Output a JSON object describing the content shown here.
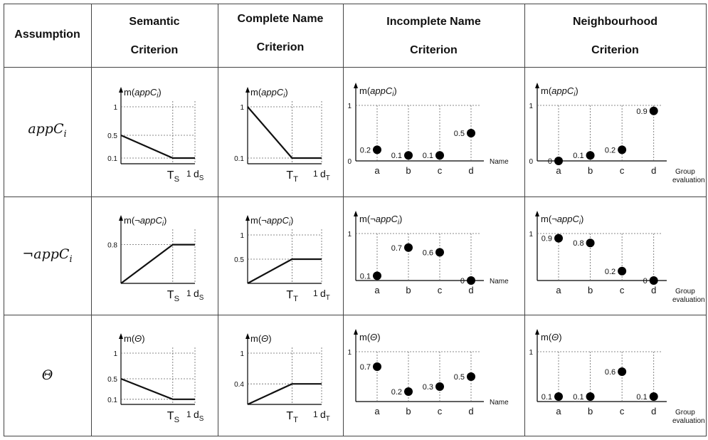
{
  "header": {
    "assumption": "Assumption",
    "semantic": [
      "Semantic",
      "Criterion"
    ],
    "complete": [
      "Complete Name",
      "Criterion"
    ],
    "incomplete": [
      "Incomplete Name",
      "Criterion"
    ],
    "neighbourhood": [
      "Neighbourhood",
      "Criterion"
    ]
  },
  "rows": [
    {
      "label_main": "appC",
      "label_sub": "i",
      "prefix": ""
    },
    {
      "label_main": "appC",
      "label_sub": "i",
      "prefix": "¬"
    },
    {
      "label_main": "Θ",
      "label_sub": "",
      "prefix": ""
    }
  ],
  "chart_data": [
    {
      "id": "sem-app",
      "type": "line",
      "ylabel": "m(appC_i)",
      "xlabel": "d_S",
      "threshold": "T_S",
      "yticks": [
        "1",
        "0.5",
        "0.1"
      ],
      "ytick_values": [
        1,
        0.5,
        0.1
      ],
      "points": [
        [
          0,
          0.5
        ],
        [
          0.7,
          0.1
        ],
        [
          1,
          0.1
        ]
      ]
    },
    {
      "id": "com-app",
      "type": "line",
      "ylabel": "m(appC_i)",
      "xlabel": "d_T",
      "threshold": "T_T",
      "yticks": [
        "1",
        "0.1"
      ],
      "ytick_values": [
        1,
        0.1
      ],
      "points": [
        [
          0,
          1
        ],
        [
          0.6,
          0.1
        ],
        [
          1,
          0.1
        ]
      ]
    },
    {
      "id": "inc-app",
      "type": "scatter",
      "ylabel": "m(appC_i)",
      "xlabel": "Name",
      "yticks": [
        "1",
        "0"
      ],
      "categories": [
        "a",
        "b",
        "c",
        "d"
      ],
      "values": [
        0.2,
        0.1,
        0.1,
        0.5
      ],
      "value_labels": [
        "0.2",
        "0.1",
        "0.1",
        "0.5"
      ]
    },
    {
      "id": "nei-app",
      "type": "scatter",
      "ylabel": "m(appC_i)",
      "xlabel": "Group evaluation",
      "yticks": [
        "1",
        "0"
      ],
      "categories": [
        "a",
        "b",
        "c",
        "d"
      ],
      "values": [
        0,
        0.1,
        0.2,
        0.9
      ],
      "value_labels": [
        "0",
        "0.1",
        "0.2",
        "0.9"
      ]
    },
    {
      "id": "sem-neg",
      "type": "line",
      "ylabel": "m(¬appC_i)",
      "xlabel": "d_S",
      "threshold": "T_S",
      "yticks": [
        "0.8"
      ],
      "ytick_values": [
        0.8
      ],
      "points": [
        [
          0,
          0
        ],
        [
          0.7,
          0.8
        ],
        [
          1,
          0.8
        ]
      ]
    },
    {
      "id": "com-neg",
      "type": "line",
      "ylabel": "m(¬appC_i)",
      "xlabel": "d_T",
      "threshold": "T_T",
      "yticks": [
        "1",
        "0.5"
      ],
      "ytick_values": [
        1,
        0.5
      ],
      "points": [
        [
          0,
          0
        ],
        [
          0.6,
          0.5
        ],
        [
          1,
          0.5
        ]
      ]
    },
    {
      "id": "inc-neg",
      "type": "scatter",
      "ylabel": "m(¬appC_i)",
      "xlabel": "Name",
      "yticks": [
        "1"
      ],
      "categories": [
        "a",
        "b",
        "c",
        "d"
      ],
      "values": [
        0.1,
        0.7,
        0.6,
        0
      ],
      "value_labels": [
        "0.1",
        "0.7",
        "0.6",
        "0"
      ]
    },
    {
      "id": "nei-neg",
      "type": "scatter",
      "ylabel": "m(¬appC_i)",
      "xlabel": "Group evaluation",
      "yticks": [
        "1"
      ],
      "categories": [
        "a",
        "b",
        "c",
        "d"
      ],
      "values": [
        0.9,
        0.8,
        0.2,
        0
      ],
      "value_labels": [
        "0.9",
        "0.8",
        "0.2",
        "0"
      ]
    },
    {
      "id": "sem-the",
      "type": "line",
      "ylabel": "m(Θ)",
      "xlabel": "d_S",
      "threshold": "T_S",
      "yticks": [
        "1",
        "0.5",
        "0.1"
      ],
      "ytick_values": [
        1,
        0.5,
        0.1
      ],
      "points": [
        [
          0,
          0.5
        ],
        [
          0.7,
          0.1
        ],
        [
          1,
          0.1
        ]
      ]
    },
    {
      "id": "com-the",
      "type": "line",
      "ylabel": "m(Θ)",
      "xlabel": "d_T",
      "threshold": "T_T",
      "yticks": [
        "1",
        "0.4"
      ],
      "ytick_values": [
        1,
        0.4
      ],
      "points": [
        [
          0,
          0
        ],
        [
          0.6,
          0.4
        ],
        [
          1,
          0.4
        ]
      ]
    },
    {
      "id": "inc-the",
      "type": "scatter",
      "ylabel": "m(Θ)",
      "xlabel": "Name",
      "yticks": [
        "1"
      ],
      "categories": [
        "a",
        "b",
        "c",
        "d"
      ],
      "values": [
        0.7,
        0.2,
        0.3,
        0.5
      ],
      "value_labels": [
        "0.7",
        "0.2",
        "0.3",
        "0.5"
      ]
    },
    {
      "id": "nei-the",
      "type": "scatter",
      "ylabel": "m(Θ)",
      "xlabel": "Group evaluation",
      "yticks": [
        "1"
      ],
      "categories": [
        "a",
        "b",
        "c",
        "d"
      ],
      "values": [
        0.1,
        0.1,
        0.6,
        0.1
      ],
      "value_labels": [
        "0.1",
        "0.1",
        "0.6",
        "0.1"
      ]
    }
  ]
}
